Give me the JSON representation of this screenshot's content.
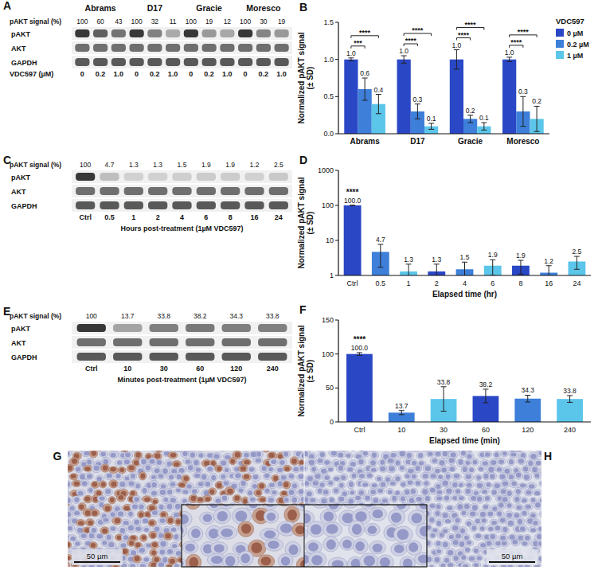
{
  "chart_data": [
    {
      "panel": "B",
      "type": "bar",
      "categories": [
        "Abrams",
        "D17",
        "Gracie",
        "Moresco"
      ],
      "series": [
        {
          "name": "0 µM",
          "color": "#2a47c6",
          "values": [
            1.0,
            1.0,
            1.0,
            1.0
          ],
          "value_labels": [
            "1.0",
            "1.0",
            "1.0",
            "1.0"
          ],
          "errors": [
            0.02,
            0.05,
            0.13,
            0.03
          ]
        },
        {
          "name": "0.2 µM",
          "color": "#3d7fd9",
          "values": [
            0.6,
            0.3,
            0.2,
            0.3
          ],
          "value_labels": [
            "0.6",
            "0.3",
            "0.2",
            "0.3"
          ],
          "errors": [
            0.15,
            0.1,
            0.05,
            0.2
          ]
        },
        {
          "name": "1 µM",
          "color": "#5cc6ea",
          "values": [
            0.4,
            0.1,
            0.1,
            0.2
          ],
          "value_labels": [
            "0.4",
            "0.1",
            "0.1",
            "0.2"
          ],
          "errors": [
            0.13,
            0.04,
            0.05,
            0.17
          ]
        }
      ],
      "y_label": [
        "Normalized pAKT signal",
        "(± SD)"
      ],
      "ylim": [
        0,
        1.5
      ],
      "yticks": [
        {
          "value": 0,
          "label": "0.0"
        },
        0.5,
        {
          "value": 1,
          "label": "1.0"
        },
        1.5
      ],
      "legend": "top-right",
      "legend_title": "VDC597",
      "data_labels": true,
      "grid": false,
      "significance": [
        {
          "category": 0,
          "from": 0,
          "to": 1,
          "label": "***"
        },
        {
          "category": 0,
          "from": 0,
          "to": 2,
          "label": "****"
        },
        {
          "category": 1,
          "from": 0,
          "to": 1,
          "label": "****"
        },
        {
          "category": 1,
          "from": 0,
          "to": 2,
          "label": "****"
        },
        {
          "category": 2,
          "from": 0,
          "to": 1,
          "label": "****"
        },
        {
          "category": 2,
          "from": 0,
          "to": 2,
          "label": "****"
        },
        {
          "category": 3,
          "from": 0,
          "to": 1,
          "label": "****"
        },
        {
          "category": 3,
          "from": 0,
          "to": 2,
          "label": "****"
        }
      ]
    },
    {
      "panel": "D",
      "type": "bar",
      "categories": [
        "Ctrl",
        "0.5",
        "1",
        "2",
        "4",
        "6",
        "8",
        "16",
        "24"
      ],
      "values": [
        100,
        4.7,
        1.3,
        1.3,
        1.5,
        1.9,
        1.9,
        1.2,
        2.5
      ],
      "value_labels": [
        "100.0",
        "4.7",
        "1.3",
        "1.3",
        "1.5",
        "1.9",
        "1.9",
        "1.2",
        "2.5"
      ],
      "errors": [
        1,
        3,
        0.8,
        0.8,
        0.9,
        0.9,
        0.8,
        0.7,
        1.0
      ],
      "colors": [
        "#2a47c6",
        "#3d7fd9",
        "#5cc6ea",
        "#2a47c6",
        "#3d7fd9",
        "#5cc6ea",
        "#2a47c6",
        "#3d7fd9",
        "#5cc6ea"
      ],
      "y_label": [
        "Normalized pAKT signal",
        "(± SD)"
      ],
      "x_label": "Elapsed time (hr)",
      "ylim": [
        1,
        1000
      ],
      "yticks": [
        1,
        10,
        100,
        1000
      ],
      "log": "y",
      "data_labels": true,
      "grid": false,
      "annotations": [
        {
          "category": 0,
          "label": "****"
        }
      ]
    },
    {
      "panel": "F",
      "type": "bar",
      "categories": [
        "Ctrl",
        "10",
        "30",
        "60",
        "120",
        "240"
      ],
      "values": [
        100,
        13.7,
        33.8,
        38.2,
        34.3,
        33.8
      ],
      "value_labels": [
        "100.0",
        "13.7",
        "33.8",
        "38.2",
        "34.3",
        "33.8"
      ],
      "errors": [
        2,
        3,
        18,
        10,
        5,
        5
      ],
      "colors": [
        "#2a47c6",
        "#3d7fd9",
        "#5cc6ea",
        "#2a47c6",
        "#3d7fd9",
        "#5cc6ea"
      ],
      "y_label": [
        "Normalized pAKT signal",
        "(± SD)"
      ],
      "x_label": "Elapsed time (min)",
      "ylim": [
        0,
        150
      ],
      "yticks": [
        0,
        50,
        100,
        150
      ],
      "data_labels": true,
      "grid": false,
      "annotations": [
        {
          "category": 0,
          "label": "****"
        }
      ]
    }
  ],
  "blots": [
    {
      "panel": "A",
      "signal_label": "pAKT signal (%)",
      "rows": [
        "pAKT",
        "AKT",
        "GAPDH"
      ],
      "lane_label": "VDC597 (µM)",
      "groups": [
        {
          "name": "Abrams",
          "lanes": [
            "0",
            "0.2",
            "1.0"
          ],
          "signal": [
            100,
            60,
            43
          ]
        },
        {
          "name": "D17",
          "lanes": [
            "0",
            "0.2",
            "1.0"
          ],
          "signal": [
            100,
            32,
            11
          ]
        },
        {
          "name": "Gracie",
          "lanes": [
            "0",
            "0.2",
            "1.0"
          ],
          "signal": [
            100,
            19,
            12
          ]
        },
        {
          "name": "Moresco",
          "lanes": [
            "0",
            "0.2",
            "1.0"
          ],
          "signal": [
            100,
            30,
            19
          ]
        }
      ]
    },
    {
      "panel": "C",
      "signal_label": "pAKT signal (%)",
      "rows": [
        "pAKT",
        "AKT",
        "GAPDH"
      ],
      "lanes": [
        "Ctrl",
        "0.5",
        "1",
        "2",
        "4",
        "6",
        "8",
        "16",
        "24"
      ],
      "signal": [
        100,
        4.7,
        1.3,
        1.3,
        1.5,
        1.9,
        1.9,
        1.2,
        2.5
      ],
      "caption": "Hours post-treatment (1µM VDC597)"
    },
    {
      "panel": "E",
      "signal_label": "pAKT signal (%)",
      "rows": [
        "pAKT",
        "AKT",
        "GAPDH"
      ],
      "lanes": [
        "Ctrl",
        "10",
        "30",
        "60",
        "120",
        "240"
      ],
      "signal": [
        100,
        13.7,
        33.8,
        38.2,
        34.3,
        33.8
      ],
      "caption": "Minutes post-treatment (1µM VDC597)"
    }
  ],
  "micrographs": [
    {
      "panel": "G",
      "scale_bar": "50 µm",
      "stain": true
    },
    {
      "panel": "H",
      "scale_bar": "50 µm",
      "stain": false
    }
  ]
}
